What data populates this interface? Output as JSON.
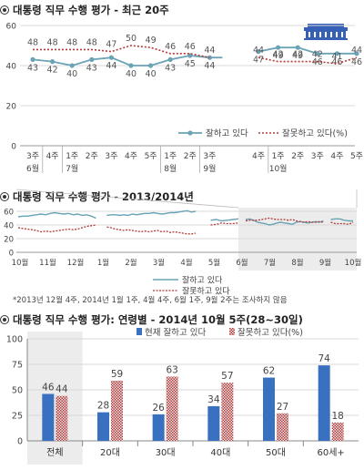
{
  "colors": {
    "approve": "#6aa3b6",
    "disapprove": "#b13a3a",
    "approve_bar": "#3a70c0",
    "disapprove_bar": "#b13a3a",
    "grid": "#d8d8d8",
    "shade": "#ececec",
    "blue_house": "#3560b5"
  },
  "icons": {
    "blue_house": "blue-house-icon",
    "bullet": "circle-bullet-icon"
  },
  "chart_data": [
    {
      "type": "line",
      "title": "대통령 직무 수행 평가 - 최근 20주",
      "ylim": [
        0,
        60
      ],
      "yticks": [
        0,
        20,
        40,
        60
      ],
      "grid": true,
      "legend_position": "center-right",
      "x_week_labels": [
        "3주",
        "4주",
        "1주",
        "2주",
        "3주",
        "4주",
        "5주",
        "1주",
        "2주",
        "3주",
        "4주",
        "1주",
        "2주",
        "3주",
        "4주",
        "5주"
      ],
      "x_month_labels": [
        {
          "label": "6월",
          "after_index": 0
        },
        {
          "label": "7월",
          "after_index": 2
        },
        {
          "label": "8월",
          "after_index": 7
        },
        {
          "label": "9월",
          "after_index": 9
        },
        {
          "label": "10월",
          "after_index": 11
        }
      ],
      "segments": [
        {
          "start": 0,
          "length": 10
        },
        {
          "start": 10,
          "length": 6
        }
      ],
      "series": [
        {
          "name": "잘하고 있다",
          "values": [
            43,
            42,
            40,
            43,
            44,
            40,
            40,
            43,
            45,
            44,
            47,
            49,
            49,
            46,
            46,
            46
          ]
        },
        {
          "name": "잘못하고 있다(%)",
          "values": [
            48,
            48,
            48,
            48,
            47,
            50,
            49,
            46,
            46,
            44,
            44,
            42,
            42,
            42,
            41,
            44
          ]
        }
      ]
    },
    {
      "type": "line",
      "title": "대통령 직무 수행 평가 - 2013/2014년",
      "ylim": [
        0,
        60
      ],
      "yticks": [
        0,
        20,
        40,
        60
      ],
      "grid": true,
      "x_labels": [
        "10월",
        "11월",
        "12월",
        "1월",
        "2월",
        "3월",
        "4월",
        "5월",
        "6월",
        "7월",
        "8월",
        "9월",
        "10월"
      ],
      "legend": [
        "잘하고 있다",
        "잘못하고 있다"
      ],
      "legend_position": "bottom",
      "note": "*2013년 12월 4주, 2014년 1월 1주, 4월 4주, 6월 1주, 9월 2주는 조사하지 않음",
      "series": [
        {
          "name": "잘하고 있다",
          "segments": [
            [
              52,
              53,
              53,
              54,
              55,
              56,
              55,
              57,
              58,
              57,
              56,
              57,
              55,
              56,
              54,
              55,
              53,
              50
            ],
            [
              54,
              55,
              55,
              54,
              55,
              54,
              56,
              55,
              56,
              57,
              57,
              58,
              57,
              56,
              57,
              58,
              58,
              59,
              60,
              61,
              59,
              60
            ],
            [
              47,
              48,
              46,
              47,
              48,
              49
            ],
            [
              48,
              49,
              47,
              44,
              43,
              42,
              40,
              41,
              43,
              44,
              43,
              42,
              41,
              44,
              45,
              44,
              43,
              44,
              45,
              44,
              46
            ],
            [
              48,
              49,
              49,
              47,
              46,
              46
            ]
          ]
        },
        {
          "name": "잘못하고 있다",
          "segments": [
            [
              36,
              35,
              34,
              33,
              32,
              30,
              31,
              30,
              31,
              32,
              33,
              34,
              33,
              34,
              36,
              38,
              39,
              40
            ],
            [
              37,
              36,
              34,
              33,
              32,
              33,
              32,
              31,
              30,
              31,
              30,
              31,
              32,
              30,
              31,
              29,
              30,
              29,
              28,
              27,
              27,
              28
            ],
            [
              40,
              41,
              43,
              42,
              42,
              43
            ],
            [
              46,
              47,
              47,
              47,
              48,
              49,
              50,
              49,
              48,
              48,
              48,
              47,
              48,
              46,
              45,
              44,
              45,
              44,
              44,
              45,
              44
            ],
            [
              44,
              42,
              42,
              42,
              41,
              44
            ]
          ]
        }
      ]
    },
    {
      "type": "bar",
      "title": "대통령 직무 수행 평가: 연령별 - 2014년 10월 5주(28~30일)",
      "categories": [
        "전체",
        "20대",
        "30대",
        "40대",
        "50대",
        "60세+"
      ],
      "ylim": [
        0,
        100
      ],
      "yticks": [
        0,
        25,
        50,
        75,
        100
      ],
      "grid": true,
      "legend_position": "top-right",
      "series": [
        {
          "name": "현재 잘하고 있다",
          "values": [
            46,
            28,
            26,
            34,
            62,
            74
          ]
        },
        {
          "name": "잘못하고 있다(%)",
          "values": [
            44,
            59,
            63,
            57,
            27,
            18
          ]
        }
      ]
    }
  ]
}
